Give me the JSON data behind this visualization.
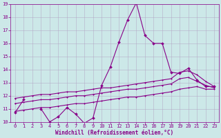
{
  "x": [
    0,
    1,
    2,
    3,
    4,
    5,
    6,
    7,
    8,
    9,
    10,
    11,
    12,
    13,
    14,
    15,
    16,
    17,
    18,
    19,
    20,
    21,
    22,
    23
  ],
  "line1_y": [
    10.7,
    11.7,
    null,
    11.0,
    10.0,
    10.4,
    11.1,
    10.6,
    9.9,
    10.3,
    12.8,
    14.2,
    16.1,
    17.8,
    19.1,
    16.6,
    16.0,
    16.0,
    13.8,
    13.7,
    14.1,
    13.2,
    12.7,
    12.7
  ],
  "line2_y": [
    11.8,
    11.9,
    12.0,
    12.1,
    12.1,
    12.2,
    12.3,
    12.3,
    12.4,
    12.5,
    12.6,
    12.6,
    12.7,
    12.8,
    12.9,
    13.0,
    13.1,
    13.2,
    13.3,
    13.8,
    13.9,
    13.6,
    13.1,
    12.7
  ],
  "line3_y": [
    11.4,
    11.5,
    11.6,
    11.7,
    11.7,
    11.8,
    11.9,
    12.0,
    12.0,
    12.1,
    12.2,
    12.3,
    12.4,
    12.5,
    12.5,
    12.6,
    12.7,
    12.8,
    12.9,
    13.3,
    13.4,
    13.1,
    12.8,
    12.6
  ],
  "line4_y": [
    10.8,
    10.9,
    11.0,
    11.1,
    11.1,
    11.2,
    11.3,
    11.4,
    11.4,
    11.5,
    11.6,
    11.7,
    11.8,
    11.9,
    11.9,
    12.0,
    12.1,
    12.2,
    12.3,
    12.5,
    12.6,
    12.7,
    12.5,
    12.5
  ],
  "color": "#880088",
  "bg_color": "#cce8e8",
  "grid_color": "#b0a0c0",
  "xlabel": "Windchill (Refroidissement éolien,°C)",
  "ylim": [
    10,
    19
  ],
  "xlim": [
    -0.5,
    23.5
  ],
  "yticks": [
    10,
    11,
    12,
    13,
    14,
    15,
    16,
    17,
    18,
    19
  ],
  "xticks": [
    0,
    1,
    2,
    3,
    4,
    5,
    6,
    7,
    8,
    9,
    10,
    11,
    12,
    13,
    14,
    15,
    16,
    17,
    18,
    19,
    20,
    21,
    22,
    23
  ],
  "marker": "D",
  "markersize": 2.0,
  "linewidth": 0.8,
  "tick_fontsize": 5.0,
  "xlabel_fontsize": 5.5
}
